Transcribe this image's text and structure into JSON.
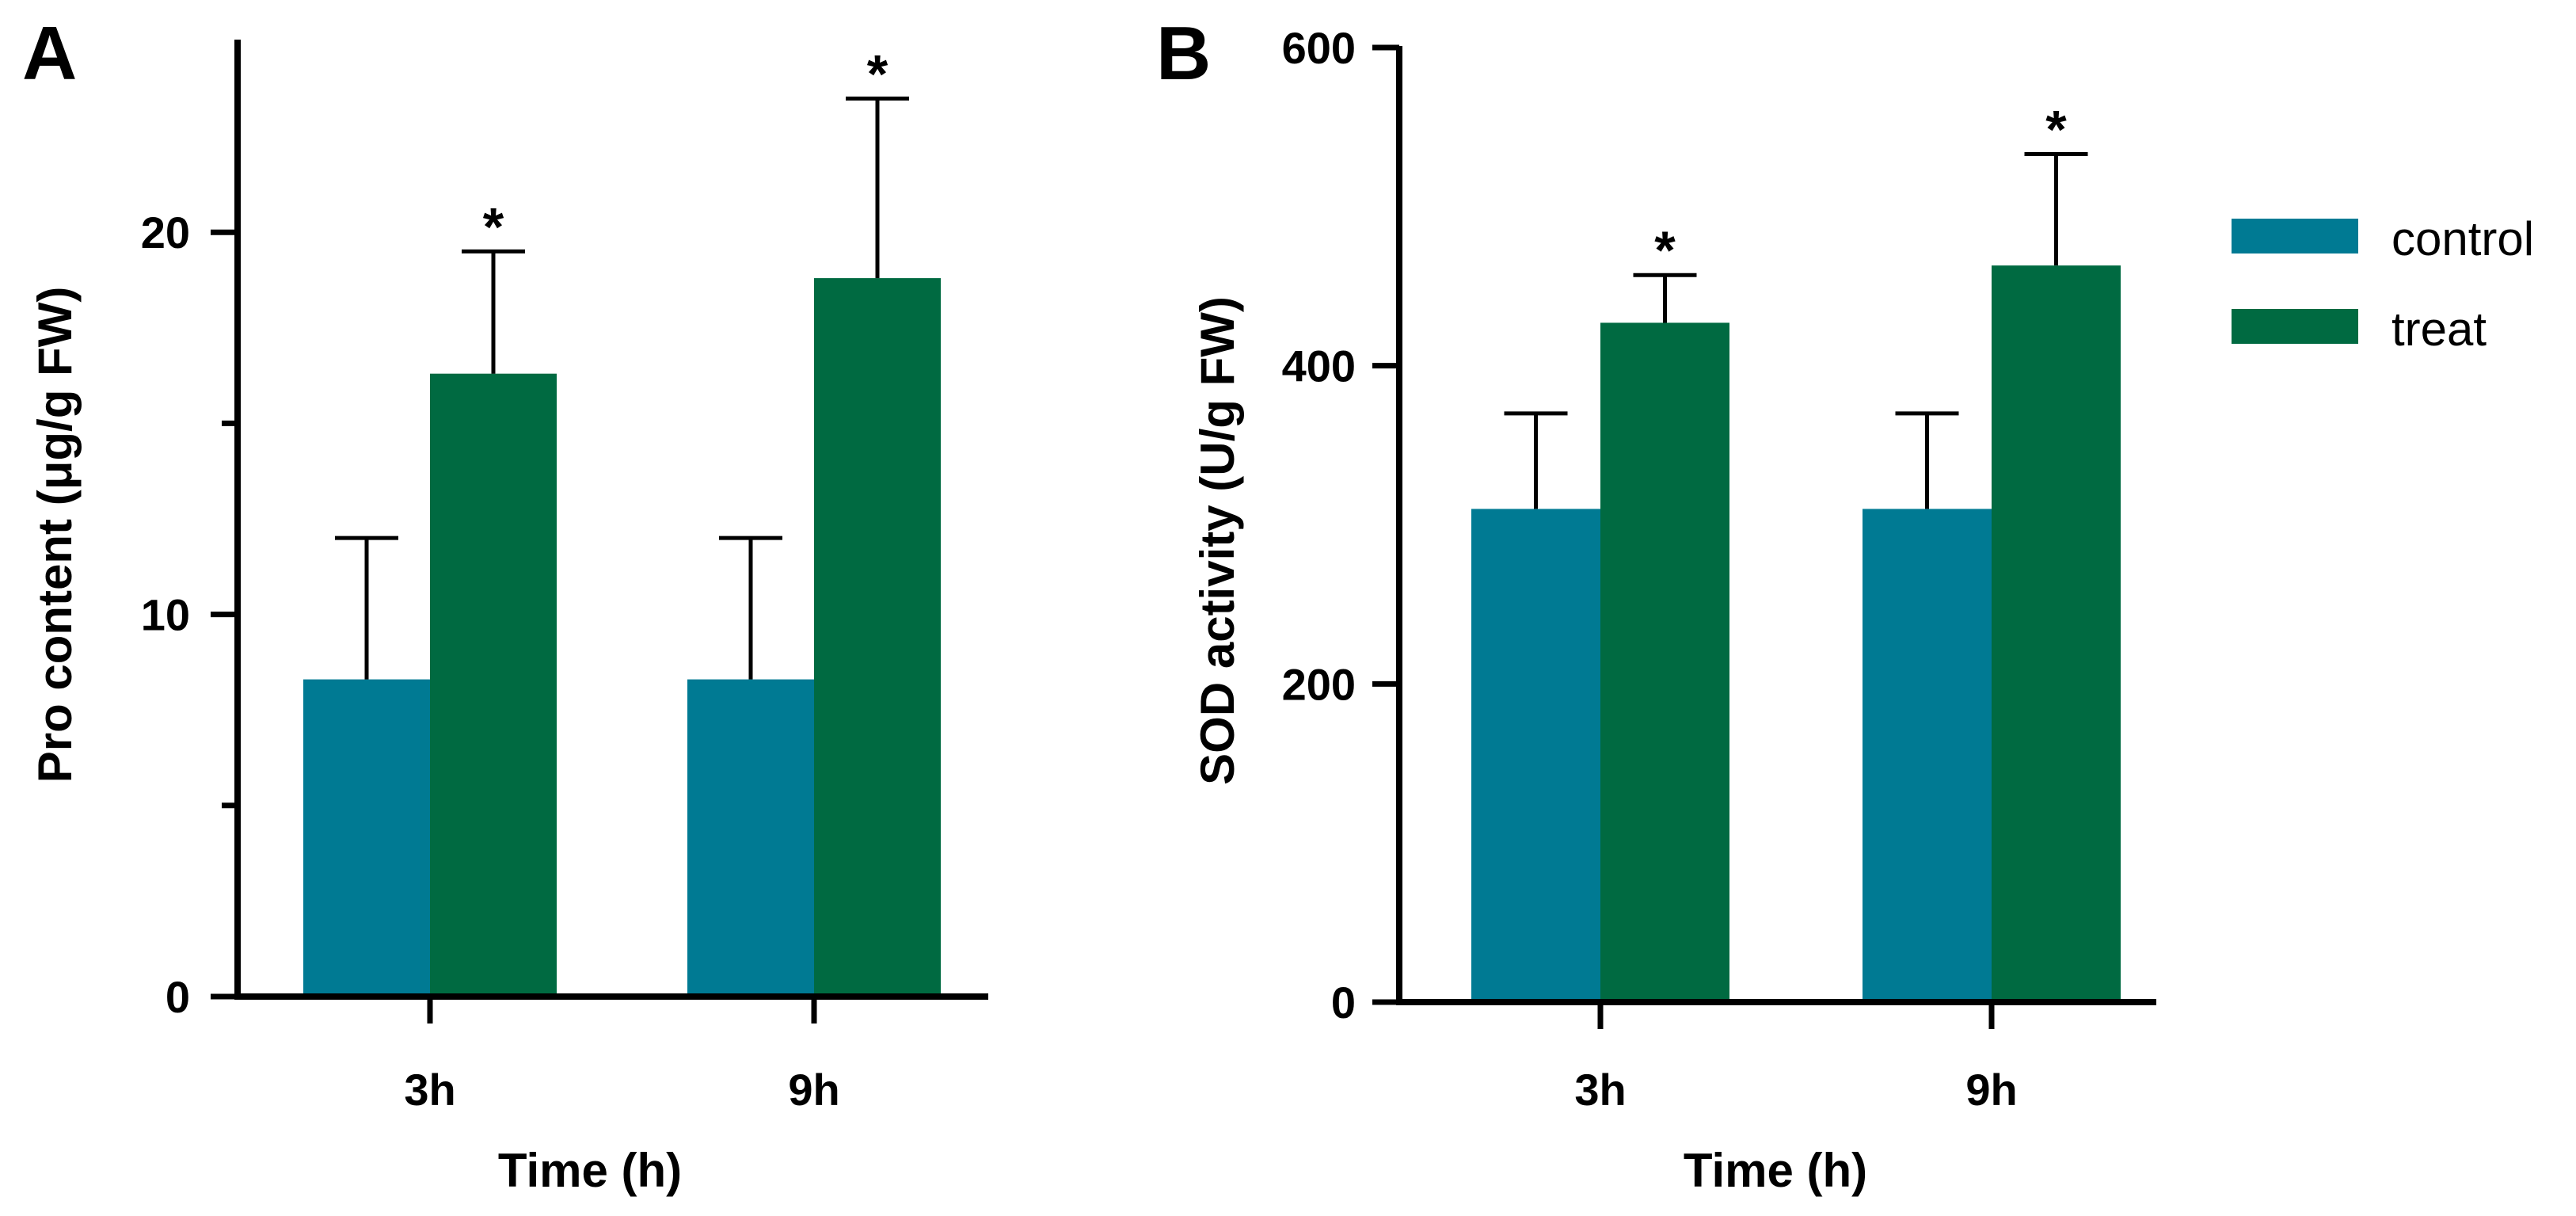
{
  "colors": {
    "control": "#007A93",
    "treat": "#006A41",
    "axis": "#000000"
  },
  "legend": {
    "placement": "right",
    "items": [
      {
        "label": "control",
        "color": "#007A93"
      },
      {
        "label": "treat",
        "color": "#006A41"
      }
    ]
  },
  "chart_data": [
    {
      "type": "bar",
      "panel_label": "A",
      "categories": [
        "3h",
        "9h"
      ],
      "series": [
        {
          "name": "control",
          "values": [
            8.3,
            8.3
          ],
          "errors": [
            3.7,
            3.7
          ],
          "significance": [
            "",
            ""
          ]
        },
        {
          "name": "treat",
          "values": [
            16.3,
            18.8
          ],
          "errors": [
            3.2,
            4.7
          ],
          "significance": [
            "*",
            "*"
          ]
        }
      ],
      "xlabel": "Time (h)",
      "ylabel": "Pro content (μg/g FW)",
      "ylim": [
        0,
        25
      ],
      "major_ticks": [
        0,
        10,
        20
      ],
      "minor_ticks": [
        5,
        15
      ],
      "grid": false
    },
    {
      "type": "bar",
      "panel_label": "B",
      "categories": [
        "3h",
        "9h"
      ],
      "series": [
        {
          "name": "control",
          "values": [
            310,
            310
          ],
          "errors": [
            60,
            60
          ],
          "significance": [
            "",
            ""
          ]
        },
        {
          "name": "treat",
          "values": [
            427,
            463
          ],
          "errors": [
            30,
            70
          ],
          "significance": [
            "*",
            "*"
          ]
        }
      ],
      "xlabel": "Time (h)",
      "ylabel": "SOD activity (U/g FW)",
      "ylim": [
        0,
        600
      ],
      "major_ticks": [
        0,
        200,
        400,
        600
      ],
      "minor_ticks": [],
      "grid": false
    }
  ]
}
